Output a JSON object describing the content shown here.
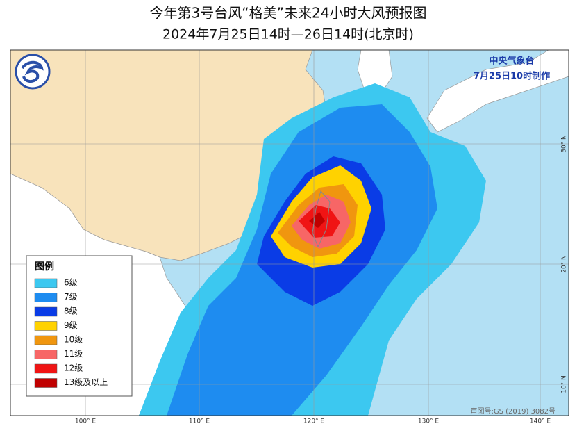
{
  "header": {
    "title": "今年第3号台风“格美”未来24小时大风预报图",
    "subtitle": "2024年7月25日14时—26日14时(北京时)"
  },
  "agency": {
    "name": "中央气象台",
    "issued": "7月25日10时制作"
  },
  "legend": {
    "title": "图例",
    "items": [
      {
        "label": "6级",
        "color": "#3cc8f0"
      },
      {
        "label": "7级",
        "color": "#1e8cf0"
      },
      {
        "label": "8级",
        "color": "#0a3ce6"
      },
      {
        "label": "9级",
        "color": "#ffd200"
      },
      {
        "label": "10级",
        "color": "#f0960f"
      },
      {
        "label": "11级",
        "color": "#f76666"
      },
      {
        "label": "12级",
        "color": "#f01414"
      },
      {
        "label": "13级及以上",
        "color": "#c00000"
      }
    ]
  },
  "axes": {
    "longitude": [
      "100° E",
      "110° E",
      "120° E",
      "130° E",
      "140° E"
    ],
    "latitude": [
      "30° N",
      "20° N",
      "10° N"
    ]
  },
  "approval": "审图号:GS (2019) 3082号"
}
